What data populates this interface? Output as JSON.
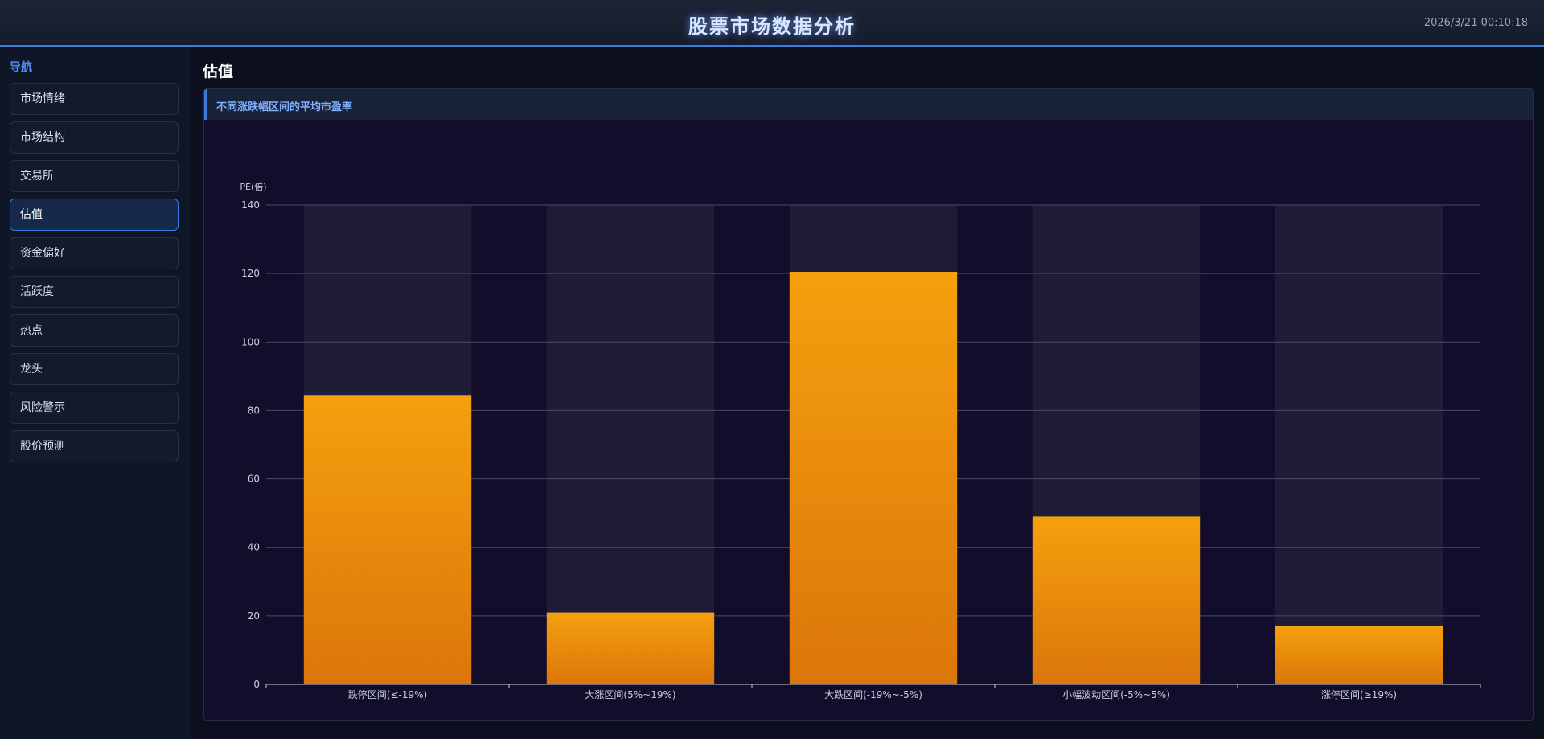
{
  "header": {
    "title": "股票市场数据分析",
    "datetime": "2026/3/21 00:10:18"
  },
  "sidebar": {
    "title": "导航",
    "items": [
      {
        "label": "市场情绪"
      },
      {
        "label": "市场结构"
      },
      {
        "label": "交易所"
      },
      {
        "label": "估值",
        "active": true
      },
      {
        "label": "资金偏好"
      },
      {
        "label": "活跃度"
      },
      {
        "label": "热点"
      },
      {
        "label": "龙头"
      },
      {
        "label": "风险警示"
      },
      {
        "label": "股价预测"
      }
    ]
  },
  "main": {
    "page_title": "估值",
    "card_title": "不同涨跌幅区间的平均市盈率"
  },
  "colors": {
    "accent": "#3d7ae0",
    "bar_top": "#f5a00e",
    "bar_bottom": "#db760a",
    "bar_background": "#1f1c38"
  },
  "chart_data": {
    "type": "bar",
    "ylabel": "PE(倍)",
    "ylim": [
      0,
      140
    ],
    "yticks": [
      0,
      20,
      40,
      60,
      80,
      100,
      120,
      140
    ],
    "categories": [
      "跌停区间(≤-19%)",
      "大涨区间(5%~19%)",
      "大跌区间(-19%~-5%)",
      "小幅波动区间(-5%~5%)",
      "涨停区间(≥19%)"
    ],
    "values": [
      84.5,
      21,
      120.5,
      49,
      17
    ],
    "grid": true,
    "legend": "none"
  }
}
